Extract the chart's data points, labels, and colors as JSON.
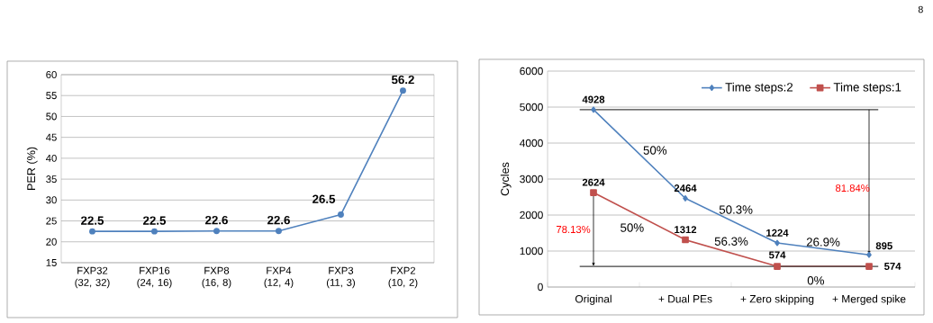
{
  "chart_data": [
    {
      "type": "line",
      "ylabel": "PER (%)",
      "categories": [
        "FXP32 (32, 32)",
        "FXP16 (24, 16)",
        "FXP8 (16, 8)",
        "FXP4 (12, 4)",
        "FXP3 (11, 3)",
        "FXP2 (10, 2)"
      ],
      "series": [
        {
          "color": "#4f81bd",
          "values": [
            22.5,
            22.5,
            22.6,
            22.6,
            26.5,
            56.2
          ]
        }
      ],
      "ylim": [
        15,
        60
      ],
      "yticks": [
        15,
        20,
        25,
        30,
        35,
        40,
        45,
        50,
        55,
        60
      ],
      "grid": "y",
      "data_labels": true,
      "marker": "circle",
      "legend": false
    },
    {
      "type": "line",
      "ylabel": "Cycles",
      "categories": [
        "Original",
        "+ Dual PEs",
        "+ Zero skipping",
        "+ Merged spike"
      ],
      "series": [
        {
          "name": "Time steps:2",
          "color": "#4f81bd",
          "marker": "diamond",
          "values": [
            4928,
            2464,
            1224,
            895
          ]
        },
        {
          "name": "Time steps:1",
          "color": "#c0504d",
          "marker": "square",
          "values": [
            2624,
            1312,
            574,
            574
          ]
        }
      ],
      "ylim": [
        0,
        6000
      ],
      "yticks": [
        0,
        1000,
        2000,
        3000,
        4000,
        5000,
        6000
      ],
      "grid": "y",
      "data_labels": true,
      "legend": "top right",
      "ref_lines": [
        {
          "axis": "y",
          "value": 4928,
          "color": "#404040"
        },
        {
          "axis": "y",
          "value": 574,
          "color": "#404040"
        }
      ],
      "annotations": [
        "50%",
        "50.3%",
        "26.9%",
        "50%",
        "56.3%",
        "0%",
        "78.13%",
        "81.84%",
        "8"
      ]
    }
  ]
}
